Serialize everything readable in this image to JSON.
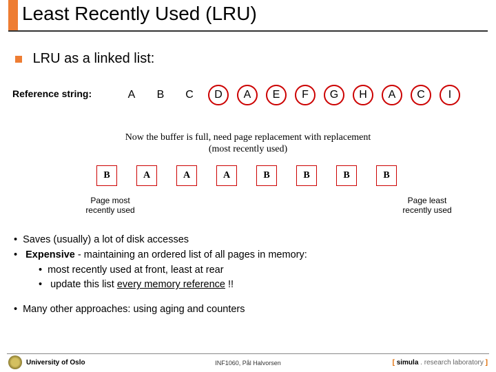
{
  "title": "Least Recently Used (LRU)",
  "accent_color": "#ee7d33",
  "subtitle": "LRU as a linked list:",
  "reference_label": "Reference string:",
  "reference_letters": [
    "A",
    "B",
    "C",
    "D",
    "A",
    "E",
    "F",
    "G",
    "H",
    "A",
    "C",
    "I"
  ],
  "circled_indices": [
    3,
    4,
    5,
    6,
    7,
    8,
    9,
    10,
    11
  ],
  "circle_color": "#cc0000",
  "mid_line1": "Now the buffer is full, need page replacement with replacement",
  "mid_line2": "(most recently used)",
  "buffer_boxes": [
    "B",
    "A",
    "A",
    "A",
    "B",
    "B",
    "B",
    "B"
  ],
  "buffer_box_color": "#cc0000",
  "label_left_l1": "Page most",
  "label_left_l2": "recently used",
  "label_right_l1": "Page least",
  "label_right_l2": "recently used",
  "bullets": {
    "b1": "Saves (usually) a lot of disk accesses",
    "b2_strong": "Expensive",
    "b2_rest": " - maintaining an ordered list of all pages in memory:",
    "b2a": "most recently used at front, least at rear",
    "b2b_pre": "update this list ",
    "b2b_u": "every memory reference",
    "b2b_post": " !!",
    "b3": "Many other approaches: using aging and counters"
  },
  "footer": {
    "left": "University of Oslo",
    "center": "INF1060,   Pål Halvorsen",
    "right_bracket_open": "[ ",
    "right_simula": "simula",
    "right_dot": " . ",
    "right_research": "research laboratory",
    "right_bracket_close": " ]"
  }
}
